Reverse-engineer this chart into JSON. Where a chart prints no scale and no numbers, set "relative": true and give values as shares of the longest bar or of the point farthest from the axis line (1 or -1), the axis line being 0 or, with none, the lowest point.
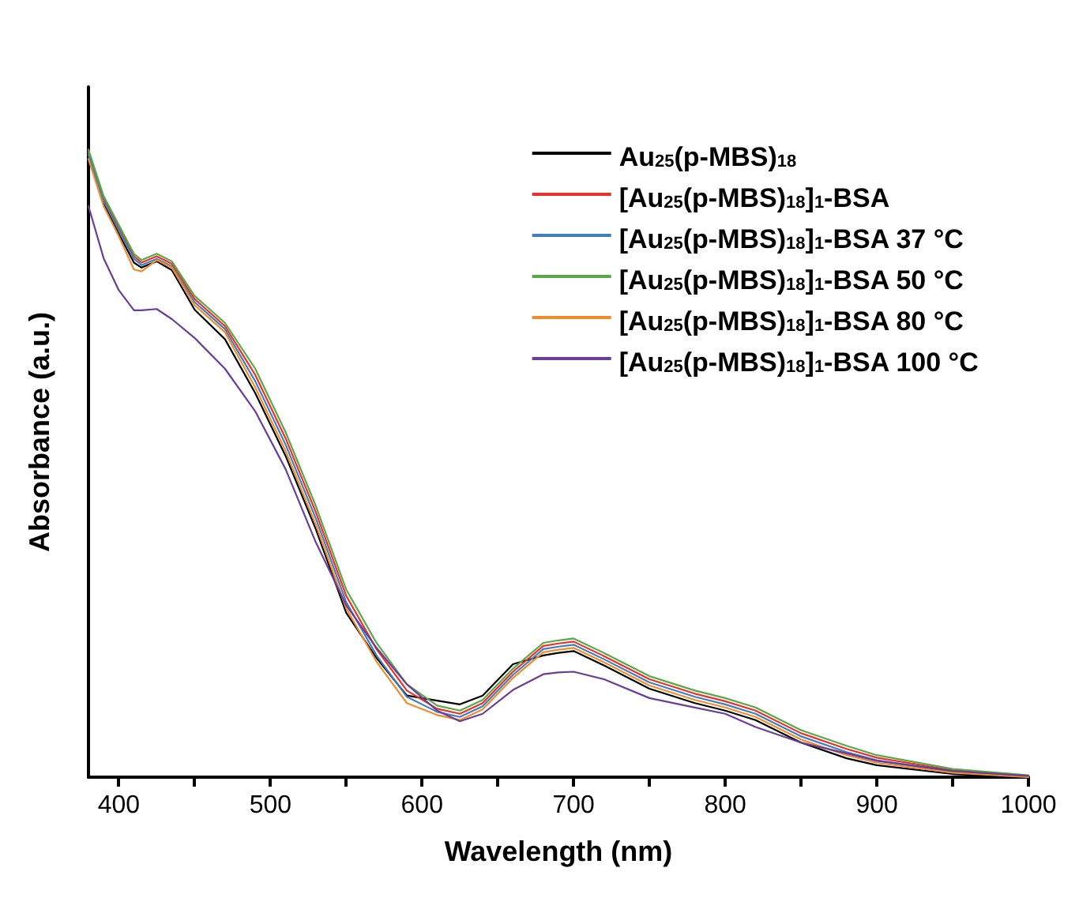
{
  "chart_data": {
    "type": "line",
    "xlabel": "Wavelength (nm)",
    "ylabel": "Absorbance (a.u.)",
    "relative": true,
    "grid": false,
    "legend": "top right",
    "xlim": [
      380,
      1000
    ],
    "xticks": [
      400,
      {
        "value": 450,
        "label": null
      },
      500,
      {
        "value": 550,
        "label": null
      },
      600,
      {
        "value": 650,
        "label": null
      },
      700,
      {
        "value": 750,
        "label": null
      },
      800,
      {
        "value": 850,
        "label": null
      },
      900,
      {
        "value": 950,
        "label": null
      },
      1000
    ],
    "x": [
      380,
      390,
      400,
      410,
      415,
      425,
      435,
      450,
      470,
      490,
      510,
      530,
      550,
      570,
      590,
      610,
      625,
      640,
      660,
      680,
      690,
      700,
      720,
      750,
      780,
      800,
      820,
      850,
      880,
      900,
      950,
      1000
    ],
    "series": [
      {
        "name": "Au$_{25}$(p-MBS)$_{18}$",
        "color": "#000000",
        "values": [
          0.99,
          0.914,
          0.866,
          0.82,
          0.812,
          0.822,
          0.808,
          0.745,
          0.698,
          0.612,
          0.512,
          0.395,
          0.262,
          0.19,
          0.13,
          0.122,
          0.116,
          0.13,
          0.18,
          0.194,
          0.198,
          0.201,
          0.178,
          0.141,
          0.118,
          0.106,
          0.091,
          0.055,
          0.03,
          0.019,
          0.005,
          0.0
        ]
      },
      {
        "name": "[Au$_{25}$(p-MBS)$_{18}$]$_{1}$-BSA",
        "color": "#e8312a",
        "values": [
          0.996,
          0.922,
          0.876,
          0.83,
          0.82,
          0.83,
          0.818,
          0.762,
          0.719,
          0.641,
          0.54,
          0.422,
          0.289,
          0.204,
          0.138,
          0.109,
          0.101,
          0.118,
          0.168,
          0.209,
          0.213,
          0.216,
          0.193,
          0.156,
          0.133,
          0.121,
          0.106,
          0.07,
          0.045,
          0.031,
          0.011,
          0.002
        ]
      },
      {
        "name": "[Au$_{25}$(p-MBS)$_{18}$]$_{1}$-BSA 37 °C",
        "color": "#3f7fc0",
        "values": [
          0.992,
          0.918,
          0.872,
          0.826,
          0.816,
          0.826,
          0.814,
          0.757,
          0.714,
          0.631,
          0.53,
          0.412,
          0.279,
          0.194,
          0.128,
          0.104,
          0.096,
          0.113,
          0.163,
          0.204,
          0.208,
          0.211,
          0.188,
          0.151,
          0.128,
          0.116,
          0.101,
          0.065,
          0.04,
          0.027,
          0.009,
          0.001
        ]
      },
      {
        "name": "[Au$_{25}$(p-MBS)$_{18}$]$_{1}$-BSA 50 °C",
        "color": "#5aa845",
        "values": [
          1.0,
          0.926,
          0.88,
          0.834,
          0.824,
          0.834,
          0.822,
          0.767,
          0.724,
          0.651,
          0.55,
          0.432,
          0.299,
          0.214,
          0.148,
          0.114,
          0.106,
          0.123,
          0.173,
          0.214,
          0.218,
          0.221,
          0.198,
          0.161,
          0.138,
          0.126,
          0.111,
          0.075,
          0.05,
          0.035,
          0.013,
          0.003
        ]
      },
      {
        "name": "[Au$_{25}$(p-MBS)$_{18}$]$_{1}$-BSA 80 °C",
        "color": "#f08c2a",
        "values": [
          0.985,
          0.91,
          0.862,
          0.809,
          0.806,
          0.824,
          0.812,
          0.752,
          0.709,
          0.621,
          0.52,
          0.402,
          0.269,
          0.184,
          0.118,
          0.099,
          0.091,
          0.108,
          0.158,
          0.199,
          0.203,
          0.206,
          0.183,
          0.146,
          0.123,
          0.111,
          0.096,
          0.06,
          0.035,
          0.023,
          0.007,
          0.0
        ]
      },
      {
        "name": "[Au$_{25}$(p-MBS)$_{18}$]$_{1}$-BSA 100 °C",
        "color": "#6a3d9a",
        "values": [
          0.91,
          0.827,
          0.776,
          0.744,
          0.744,
          0.746,
          0.73,
          0.7,
          0.651,
          0.583,
          0.491,
          0.374,
          0.274,
          0.206,
          0.148,
          0.106,
          0.089,
          0.101,
          0.139,
          0.164,
          0.167,
          0.168,
          0.156,
          0.126,
          0.111,
          0.101,
          0.08,
          0.055,
          0.038,
          0.026,
          0.01,
          0.002
        ]
      }
    ]
  }
}
